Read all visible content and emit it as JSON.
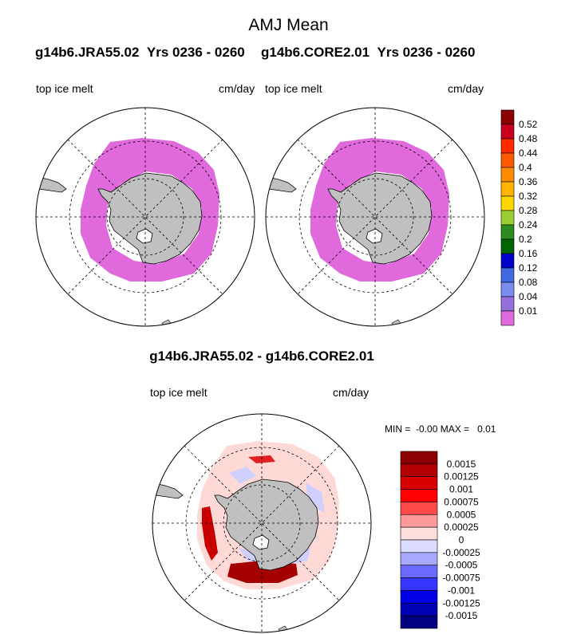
{
  "title": "AMJ Mean",
  "panels": [
    {
      "run": "g14b6.JRA55.02",
      "years": "Yrs 0236 - 0260",
      "variable": "top ice melt",
      "units": "cm/day"
    },
    {
      "run": "g14b6.CORE2.01",
      "years": "Yrs 0236 - 0260",
      "variable": "top ice melt",
      "units": "cm/day"
    }
  ],
  "difference": {
    "title": "g14b6.JRA55.02 - g14b6.CORE2.01",
    "variable": "top ice melt",
    "units": "cm/day",
    "min_label": "MIN =",
    "min_value": "-0.00",
    "max_label": "MAX =",
    "max_value": "0.01"
  },
  "colors": {
    "land": "#c0c0c0",
    "melt_fill": "#e06adc",
    "pos_strong": "#b80000",
    "pos_light": "#ffd9d6",
    "neg_light": "#d0d0ff"
  },
  "chart_data": {
    "type": "polar-map",
    "projection": "south polar stereographic",
    "main_colorbar": {
      "levels": [
        "0.52",
        "0.48",
        "0.44",
        "0.4",
        "0.36",
        "0.32",
        "0.28",
        "0.24",
        "0.2",
        "0.16",
        "0.12",
        "0.08",
        "0.04",
        "0.01"
      ],
      "colors": [
        "#8b0000",
        "#c8001e",
        "#ff2a00",
        "#ff5a00",
        "#ff8c00",
        "#ffb400",
        "#ffd700",
        "#9acd32",
        "#2e8b22",
        "#006400",
        "#0000c8",
        "#4169e1",
        "#7b8cf0",
        "#9370db",
        "#e06adc"
      ]
    },
    "diff_colorbar": {
      "levels": [
        "0.0015",
        "0.00125",
        "0.001",
        "0.00075",
        "0.0005",
        "0.00025",
        "0",
        "-0.00025",
        "-0.0005",
        "-0.00075",
        "-0.001",
        "-0.00125",
        "-0.0015"
      ],
      "colors": [
        "#8b0000",
        "#b20000",
        "#d80000",
        "#ff0000",
        "#ff4a4a",
        "#ff9a9a",
        "#ffdede",
        "#dcdcff",
        "#a8a8ff",
        "#6a6aff",
        "#3535ff",
        "#0000e6",
        "#0000b4",
        "#000080"
      ]
    },
    "panel_values": [
      {
        "panel": "g14b6.JRA55.02",
        "ice_melt_band": "0.01"
      },
      {
        "panel": "g14b6.CORE2.01",
        "ice_melt_band": "0.01"
      }
    ]
  }
}
